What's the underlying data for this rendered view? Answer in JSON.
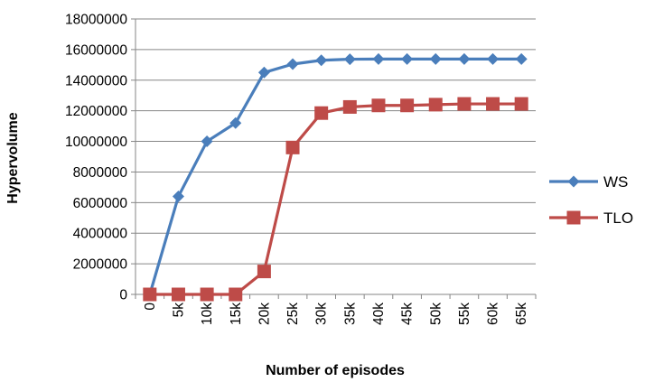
{
  "chart_data": {
    "type": "line",
    "title": "",
    "xlabel": "Number of episodes",
    "ylabel": "Hypervolume",
    "categories": [
      "0",
      "5k",
      "10k",
      "15k",
      "20k",
      "25k",
      "30k",
      "35k",
      "40k",
      "45k",
      "50k",
      "55k",
      "60k",
      "65k"
    ],
    "ylim": [
      0,
      18000000
    ],
    "yticks": [
      0,
      2000000,
      4000000,
      6000000,
      8000000,
      10000000,
      12000000,
      14000000,
      16000000,
      18000000
    ],
    "grid": true,
    "legend_position": "right",
    "series": [
      {
        "name": "WS",
        "color": "#4a7ebb",
        "marker": "diamond",
        "values": [
          0,
          6400000,
          10000000,
          11200000,
          14500000,
          15050000,
          15300000,
          15370000,
          15380000,
          15380000,
          15380000,
          15380000,
          15380000,
          15380000
        ]
      },
      {
        "name": "TLO",
        "color": "#be4b48",
        "marker": "square",
        "values": [
          0,
          0,
          0,
          0,
          1500000,
          9600000,
          11850000,
          12250000,
          12350000,
          12350000,
          12400000,
          12450000,
          12450000,
          12450000
        ]
      }
    ]
  }
}
